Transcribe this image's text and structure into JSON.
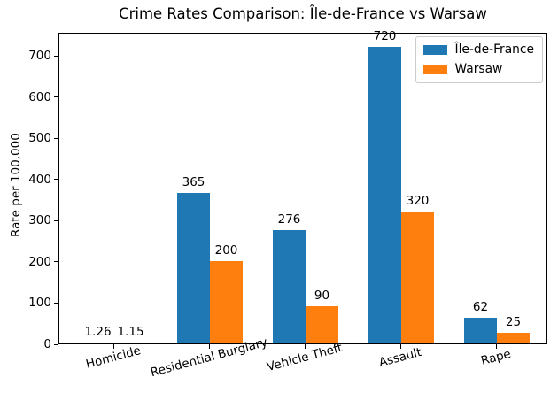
{
  "figure": {
    "title": "Crime Rates Comparison: Île-de-France vs Warsaw",
    "ylabel": "Rate per 100,000"
  },
  "chart_data": {
    "type": "bar",
    "title": "Crime Rates Comparison: Île-de-France vs Warsaw",
    "xlabel": "",
    "ylabel": "Rate per 100,000",
    "categories": [
      "Homicide",
      "Residential Burglary",
      "Vehicle Theft",
      "Assault",
      "Rape"
    ],
    "series": [
      {
        "name": "Île-de-France",
        "color": "#1f77b4",
        "values": [
          1.26,
          365,
          276,
          720,
          62
        ],
        "value_labels": [
          "1.26",
          "365",
          "276",
          "720",
          "62"
        ]
      },
      {
        "name": "Warsaw",
        "color": "#ff7f0e",
        "values": [
          1.15,
          200,
          90,
          320,
          25
        ],
        "value_labels": [
          "1.15",
          "200",
          "90",
          "320",
          "25"
        ]
      }
    ],
    "yticks": [
      0,
      100,
      200,
      300,
      400,
      500,
      600,
      700
    ],
    "ylim": [
      0,
      756
    ],
    "grid": false,
    "legend_position": "upper right",
    "xtick_rotation_deg": 15,
    "bar_value_labels_shown": true
  }
}
